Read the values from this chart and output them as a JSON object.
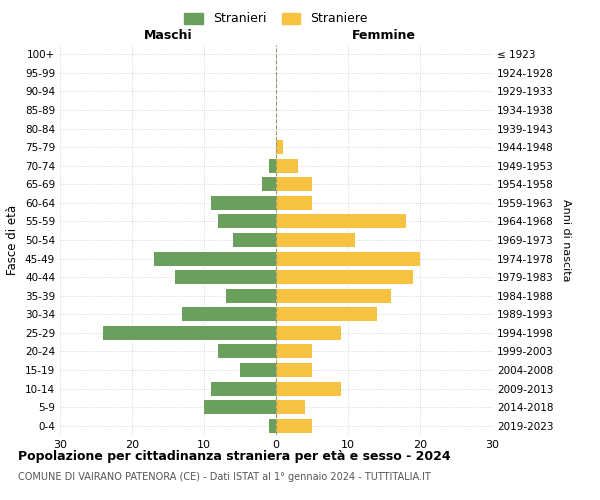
{
  "age_groups": [
    "0-4",
    "5-9",
    "10-14",
    "15-19",
    "20-24",
    "25-29",
    "30-34",
    "35-39",
    "40-44",
    "45-49",
    "50-54",
    "55-59",
    "60-64",
    "65-69",
    "70-74",
    "75-79",
    "80-84",
    "85-89",
    "90-94",
    "95-99",
    "100+"
  ],
  "birth_years": [
    "2019-2023",
    "2014-2018",
    "2009-2013",
    "2004-2008",
    "1999-2003",
    "1994-1998",
    "1989-1993",
    "1984-1988",
    "1979-1983",
    "1974-1978",
    "1969-1973",
    "1964-1968",
    "1959-1963",
    "1954-1958",
    "1949-1953",
    "1944-1948",
    "1939-1943",
    "1934-1938",
    "1929-1933",
    "1924-1928",
    "≤ 1923"
  ],
  "males": [
    1,
    10,
    9,
    5,
    8,
    24,
    13,
    7,
    14,
    17,
    6,
    8,
    9,
    2,
    1,
    0,
    0,
    0,
    0,
    0,
    0
  ],
  "females": [
    5,
    4,
    9,
    5,
    5,
    9,
    14,
    16,
    19,
    20,
    11,
    18,
    5,
    5,
    3,
    1,
    0,
    0,
    0,
    0,
    0
  ],
  "male_color": "#6a9f5e",
  "female_color": "#f5c242",
  "title": "Popolazione per cittadinanza straniera per età e sesso - 2024",
  "subtitle": "COMUNE DI VAIRANO PATENORA (CE) - Dati ISTAT al 1° gennaio 2024 - TUTTITALIA.IT",
  "left_label": "Maschi",
  "right_label": "Femmine",
  "ylabel": "Fasce di età",
  "right_ylabel": "Anni di nascita",
  "legend_male": "Stranieri",
  "legend_female": "Straniere",
  "xlim": 30,
  "background_color": "#ffffff",
  "grid_color": "#cccccc"
}
